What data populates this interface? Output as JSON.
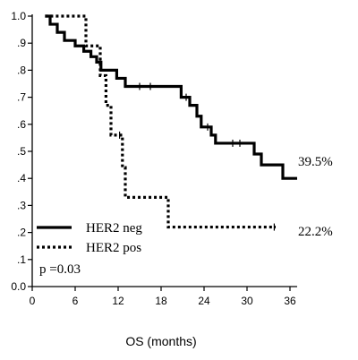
{
  "chart_data": {
    "type": "line",
    "title": "",
    "xlabel": "OS (months)",
    "ylabel": "",
    "xlim": [
      0,
      36
    ],
    "ylim": [
      0.0,
      1.0
    ],
    "x_ticks": [
      0,
      6,
      12,
      18,
      24,
      30,
      36
    ],
    "x_tick_labels": [
      "0",
      "6",
      "12",
      "18",
      "24",
      "30",
      "36"
    ],
    "y_ticks": [
      0.0,
      0.1,
      0.2,
      0.3,
      0.4,
      0.5,
      0.6,
      0.7,
      0.8,
      0.9,
      1.0
    ],
    "y_tick_labels": [
      "0.0",
      ".1",
      ".2",
      ".3",
      ".4",
      ".5",
      ".6",
      ".7",
      ".8",
      ".9",
      "1.0"
    ],
    "series": [
      {
        "name": "HER2 neg",
        "style": "solid",
        "steps": [
          [
            1.8,
            1.0
          ],
          [
            2.5,
            0.97
          ],
          [
            3.5,
            0.94
          ],
          [
            4.5,
            0.91
          ],
          [
            6.0,
            0.89
          ],
          [
            7.2,
            0.87
          ],
          [
            8.2,
            0.85
          ],
          [
            9.0,
            0.83
          ],
          [
            9.6,
            0.8
          ],
          [
            11.8,
            0.77
          ],
          [
            13.0,
            0.74
          ],
          [
            20.8,
            0.7
          ],
          [
            22.0,
            0.67
          ],
          [
            23.0,
            0.63
          ],
          [
            23.6,
            0.59
          ],
          [
            25.0,
            0.56
          ],
          [
            25.6,
            0.53
          ],
          [
            31.0,
            0.49
          ],
          [
            32.0,
            0.45
          ],
          [
            35.0,
            0.4
          ],
          [
            37.0,
            0.4
          ]
        ],
        "censor_x": [
          9.5,
          15.0,
          16.5,
          21.5,
          24.5,
          28.0,
          29.0
        ]
      },
      {
        "name": "HER2 pos",
        "style": "dotted",
        "steps": [
          [
            1.8,
            1.0
          ],
          [
            7.5,
            0.89
          ],
          [
            9.5,
            0.78
          ],
          [
            10.3,
            0.67
          ],
          [
            11.0,
            0.56
          ],
          [
            12.6,
            0.44
          ],
          [
            13.0,
            0.33
          ],
          [
            19.0,
            0.22
          ],
          [
            34.0,
            0.22
          ]
        ],
        "censor_x": [
          12.2,
          33.8
        ]
      }
    ],
    "end_labels": [
      "39.5%",
      "22.2%"
    ],
    "legend": {
      "placement": "bottom-left",
      "entries": [
        "HER2 neg",
        "HER2 pos"
      ]
    },
    "annotation": "p =0.03",
    "grid": false
  }
}
